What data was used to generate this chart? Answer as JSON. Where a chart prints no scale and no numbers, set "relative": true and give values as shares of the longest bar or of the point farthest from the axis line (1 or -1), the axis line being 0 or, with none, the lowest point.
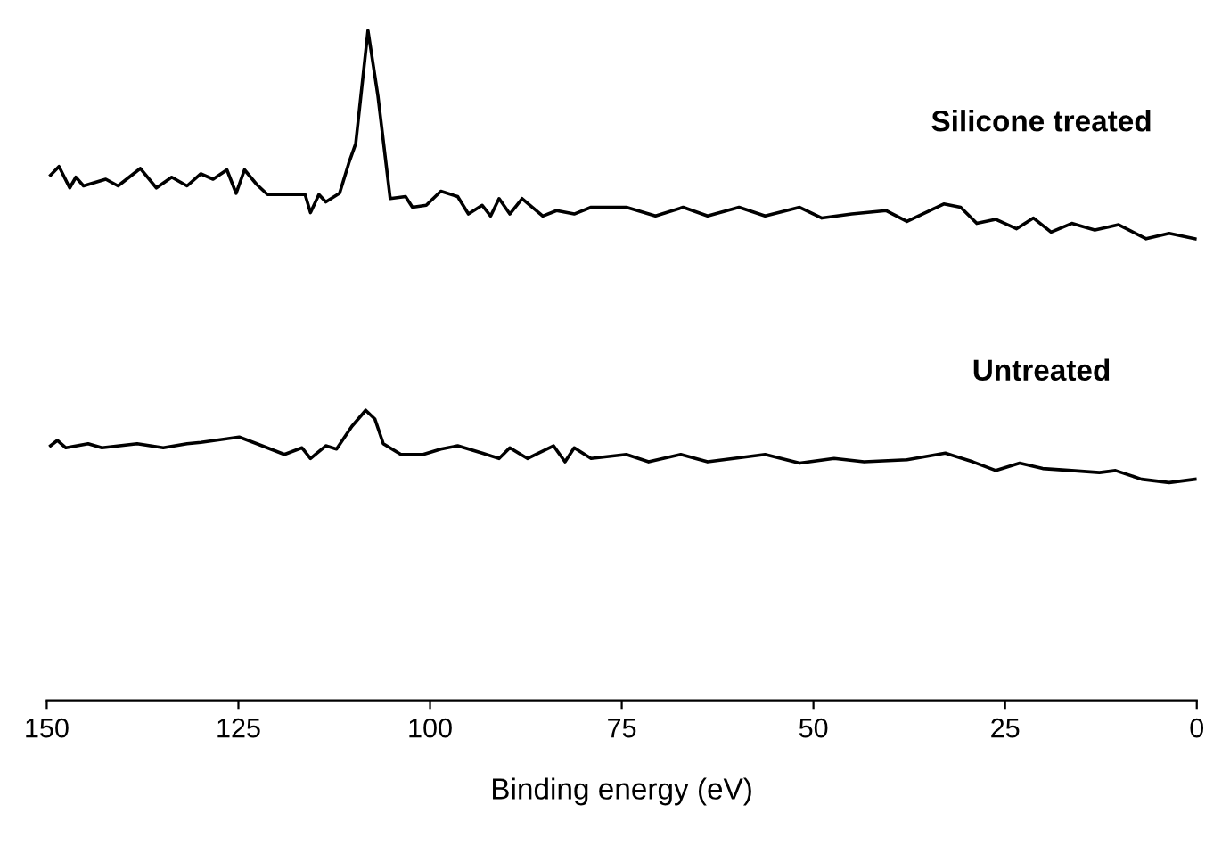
{
  "chart_data": {
    "type": "line",
    "relative": true,
    "xlabel": "Binding energy (eV)",
    "xlim": [
      150,
      0
    ],
    "xticks": [
      150,
      125,
      100,
      75,
      50,
      25,
      0
    ],
    "grid": false,
    "legend": false,
    "marker": "none",
    "line_style": "solid",
    "series": [
      {
        "name": "Silicone treated",
        "color": "#000000",
        "x": [
          149.5,
          148.4,
          147,
          146.2,
          145.2,
          142.3,
          140.7,
          137.8,
          135.7,
          133.7,
          131.7,
          129.9,
          128.3,
          126.5,
          125.3,
          124.2,
          122.6,
          121.2,
          119,
          116.3,
          115.6,
          114.5,
          113.6,
          111.8,
          110.6,
          109.7,
          108.1,
          106.8,
          105.2,
          103.2,
          102.3,
          100.5,
          98.6,
          96.4,
          95,
          93.2,
          92.1,
          91,
          89.6,
          88,
          85.3,
          83.5,
          81.2,
          79,
          74.4,
          70.6,
          67,
          63.8,
          59.7,
          56.3,
          51.8,
          48.9,
          45,
          40.5,
          37.8,
          33,
          30.8,
          28.7,
          26.2,
          23.5,
          21.3,
          19,
          16.3,
          13.3,
          10.2,
          6.6,
          3.6,
          0.2
        ],
        "values": [
          0.784,
          0.797,
          0.765,
          0.781,
          0.768,
          0.778,
          0.768,
          0.794,
          0.765,
          0.781,
          0.768,
          0.786,
          0.778,
          0.792,
          0.757,
          0.792,
          0.77,
          0.755,
          0.755,
          0.755,
          0.728,
          0.755,
          0.744,
          0.757,
          0.802,
          0.831,
          1.0,
          0.902,
          0.749,
          0.752,
          0.736,
          0.739,
          0.76,
          0.752,
          0.726,
          0.739,
          0.723,
          0.749,
          0.726,
          0.749,
          0.723,
          0.731,
          0.726,
          0.736,
          0.736,
          0.723,
          0.736,
          0.723,
          0.736,
          0.723,
          0.736,
          0.72,
          0.726,
          0.731,
          0.715,
          0.741,
          0.736,
          0.712,
          0.718,
          0.704,
          0.72,
          0.699,
          0.712,
          0.702,
          0.71,
          0.689,
          0.697,
          0.689
        ]
      },
      {
        "name": "Untreated",
        "color": "#000000",
        "x": [
          149.5,
          148.6,
          147.5,
          144.6,
          142.8,
          138.2,
          134.8,
          131.7,
          129.9,
          124.9,
          122.6,
          119,
          116.7,
          115.6,
          113.6,
          112.2,
          110.2,
          108.4,
          107.2,
          106.1,
          103.8,
          100.9,
          98.6,
          96.4,
          93.2,
          91,
          89.6,
          87.3,
          83.9,
          82.4,
          81.2,
          79,
          74.4,
          71.5,
          67.3,
          63.8,
          56.3,
          51.8,
          47.3,
          43.4,
          37.8,
          32.8,
          29.2,
          26.2,
          23.1,
          20.1,
          16.3,
          12.7,
          10.6,
          7.2,
          3.6,
          0.2
        ],
        "values": [
          0.38,
          0.388,
          0.377,
          0.383,
          0.377,
          0.383,
          0.377,
          0.383,
          0.385,
          0.393,
          0.383,
          0.367,
          0.377,
          0.361,
          0.38,
          0.375,
          0.409,
          0.433,
          0.42,
          0.383,
          0.367,
          0.367,
          0.375,
          0.38,
          0.369,
          0.361,
          0.377,
          0.361,
          0.38,
          0.356,
          0.377,
          0.361,
          0.367,
          0.356,
          0.367,
          0.356,
          0.367,
          0.354,
          0.361,
          0.356,
          0.359,
          0.369,
          0.356,
          0.343,
          0.354,
          0.346,
          0.343,
          0.34,
          0.343,
          0.33,
          0.325,
          0.33
        ]
      }
    ]
  }
}
